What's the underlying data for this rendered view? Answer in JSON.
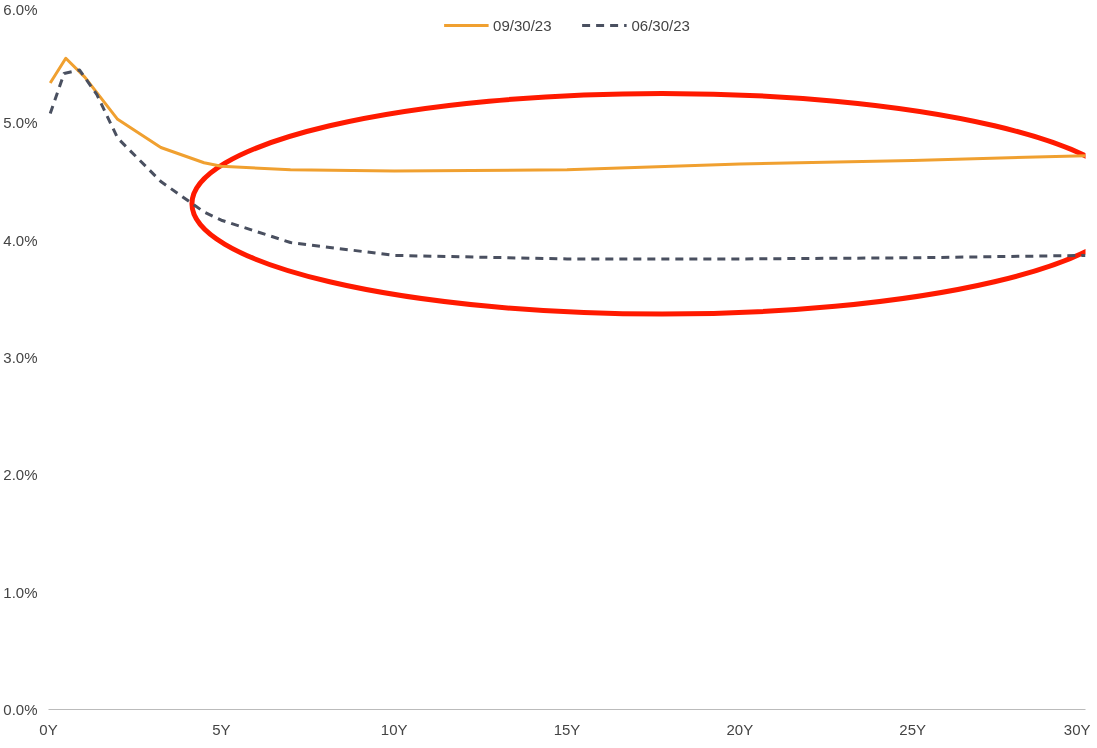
{
  "chart_data": {
    "type": "line",
    "legend": "top",
    "grid": false,
    "marker": "none",
    "xlim": [
      0,
      30
    ],
    "ylim": [
      0,
      6
    ],
    "xticks": [
      {
        "value": 0,
        "label": "0Y"
      },
      {
        "value": 5,
        "label": "5Y"
      },
      {
        "value": 10,
        "label": "10Y"
      },
      {
        "value": 15,
        "label": "15Y"
      },
      {
        "value": 20,
        "label": "20Y"
      },
      {
        "value": 25,
        "label": "25Y"
      },
      {
        "value": 30,
        "label": "30Y"
      }
    ],
    "yticks": [
      {
        "value": 0,
        "label": "0.0%"
      },
      {
        "value": 1,
        "label": "1.0%"
      },
      {
        "value": 2,
        "label": "2.0%"
      },
      {
        "value": 3,
        "label": "3.0%"
      },
      {
        "value": 4,
        "label": "4.0%"
      },
      {
        "value": 5,
        "label": "5.0%"
      },
      {
        "value": 6,
        "label": "6.0%"
      }
    ],
    "series": [
      {
        "name": "09/30/23",
        "color": "#f0a030",
        "line_style": "solid",
        "x": [
          0.05,
          0.5,
          1.05,
          2,
          3.25,
          4.5,
          5,
          7,
          10,
          15,
          20,
          25,
          30
        ],
        "values": [
          5.34,
          5.55,
          5.39,
          5.03,
          4.79,
          4.66,
          4.63,
          4.6,
          4.59,
          4.6,
          4.65,
          4.68,
          4.72
        ]
      },
      {
        "name": "06/30/23",
        "color": "#4a5060",
        "line_style": "dashed",
        "x": [
          0.05,
          0.45,
          0.9,
          1.4,
          2,
          3.25,
          4.5,
          5,
          7,
          10,
          15,
          20,
          25,
          30
        ],
        "values": [
          5.08,
          5.42,
          5.45,
          5.24,
          4.87,
          4.5,
          4.24,
          4.17,
          3.98,
          3.87,
          3.84,
          3.84,
          3.85,
          3.87
        ]
      }
    ]
  }
}
